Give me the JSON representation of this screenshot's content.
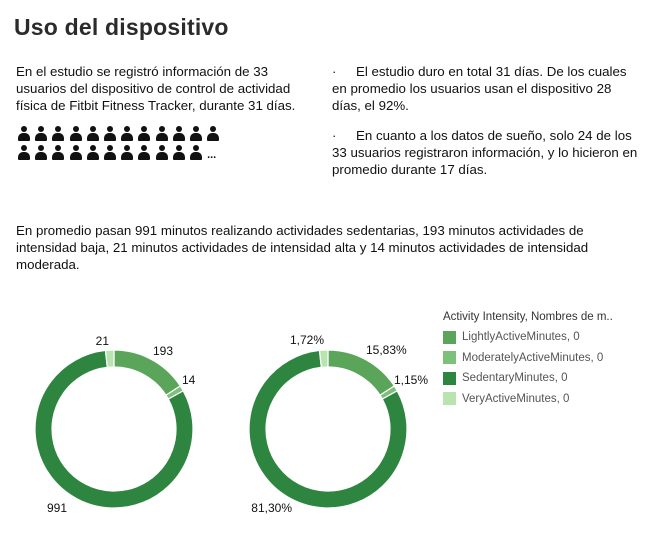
{
  "title": "Uso del dispositivo",
  "intro": "En el estudio se registró información de 33 usuarios del dispositivo de control de actividad física de Fitbit Fitness Tracker, durante 31 días.",
  "people": {
    "row1": 12,
    "row2": 11,
    "ellipsis": "..."
  },
  "bullets": [
    {
      "marker": "·",
      "text": "El estudio duro en total 31 días. De los cuales en promedio los usuarios usan el dispositivo 28 días, el 92%."
    },
    {
      "marker": "·",
      "text": "En cuanto a los datos de sueño, solo 24 de los 33 usuarios registraron información, y lo hicieron en promedio durante 17 días."
    }
  ],
  "summary": "En promedio pasan 991 minutos realizando actividades sedentarias, 193 minutos actividades de intensidad baja, 21 minutos actividades de intensidad alta y 14 minutos actividades de intensidad moderada.",
  "legend": {
    "title": "Activity Intensity, Nombres de m..",
    "items": [
      {
        "label": "LightlyActiveMinutes, 0",
        "color": "#5aa55a"
      },
      {
        "label": "ModeratelyActiveMinutes, 0",
        "color": "#7cc07a"
      },
      {
        "label": "SedentaryMinutes, 0",
        "color": "#2e8540"
      },
      {
        "label": "VeryActiveMinutes, 0",
        "color": "#b9e4b0"
      }
    ]
  },
  "chart_data": [
    {
      "type": "pie",
      "categories": [
        "LightlyActiveMinutes",
        "ModeratelyActiveMinutes",
        "SedentaryMinutes",
        "VeryActiveMinutes"
      ],
      "values": [
        193,
        14,
        991,
        21
      ],
      "data_labels": [
        "193",
        "14",
        "991",
        "21"
      ]
    },
    {
      "type": "pie",
      "categories": [
        "LightlyActiveMinutes",
        "ModeratelyActiveMinutes",
        "SedentaryMinutes",
        "VeryActiveMinutes"
      ],
      "values": [
        15.83,
        1.15,
        81.3,
        1.72
      ],
      "data_labels": [
        "15,83%",
        "1,15%",
        "81,30%",
        "1,72%"
      ]
    }
  ]
}
